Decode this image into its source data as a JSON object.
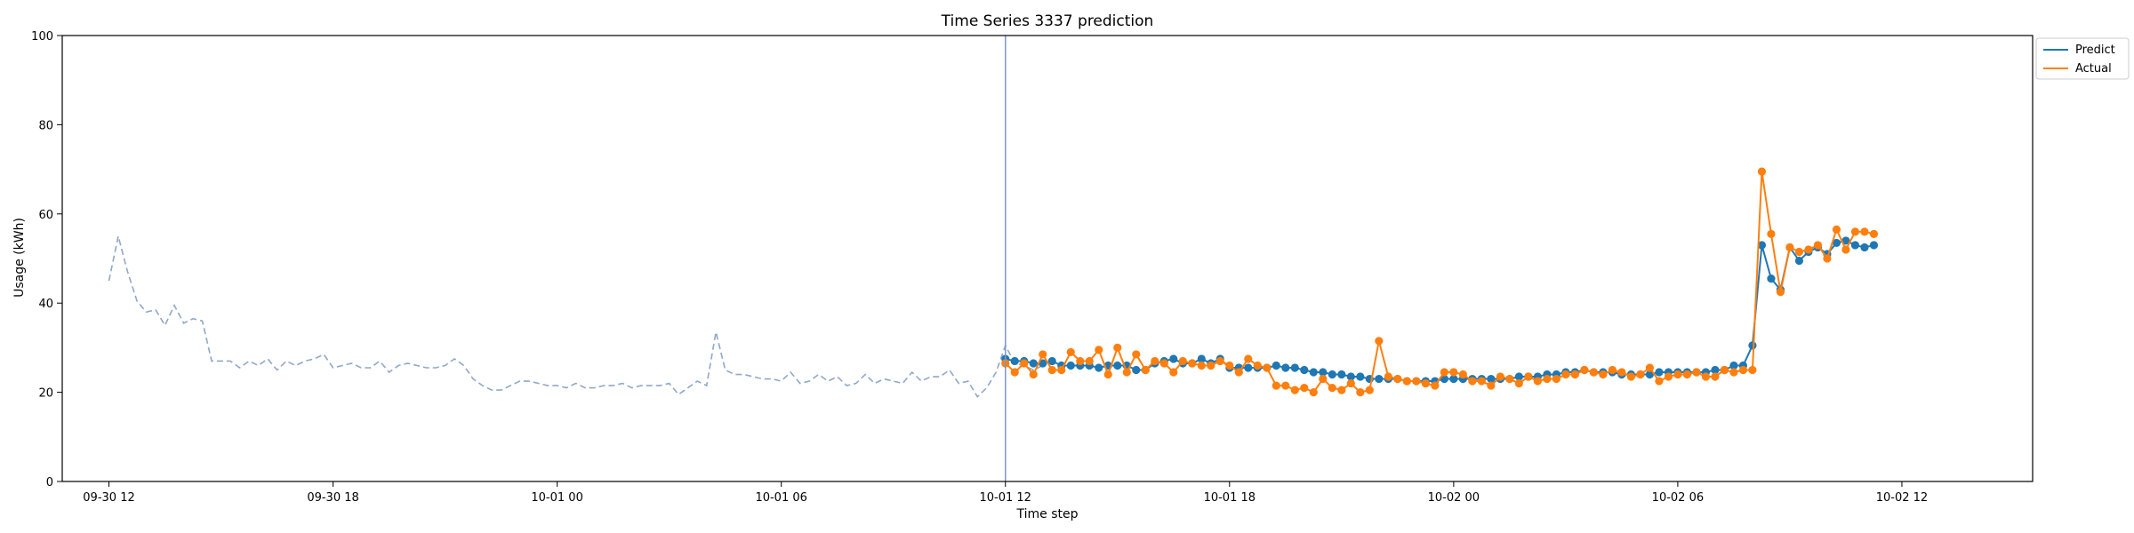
{
  "chart_data": {
    "type": "line",
    "title": "Time Series 3337 prediction",
    "xlabel": "Time step",
    "ylabel": "Usage (kWh)",
    "ylim": [
      0,
      100
    ],
    "yticks": [
      0,
      20,
      40,
      60,
      80,
      100
    ],
    "xlim_hours": [
      -1.25,
      51.5
    ],
    "x_origin": "09-30 12",
    "xticks": [
      {
        "hours": 0,
        "label": "09-30 12"
      },
      {
        "hours": 6,
        "label": "09-30 18"
      },
      {
        "hours": 12,
        "label": "10-01 00"
      },
      {
        "hours": 18,
        "label": "10-01 06"
      },
      {
        "hours": 24,
        "label": "10-01 12"
      },
      {
        "hours": 30,
        "label": "10-01 18"
      },
      {
        "hours": 36,
        "label": "10-02 00"
      },
      {
        "hours": 42,
        "label": "10-02 06"
      },
      {
        "hours": 48,
        "label": "10-02 12"
      }
    ],
    "step_hours": 0.25,
    "forecast_start_hours": 24,
    "grid": false,
    "legend": {
      "position": "top-right",
      "entries": [
        "Predict",
        "Actual"
      ]
    },
    "series": [
      {
        "name": "History",
        "color": "#8fa8c8",
        "style": "dashed",
        "start_hours": 0,
        "values": [
          45,
          55,
          47,
          40.5,
          38,
          38.5,
          35,
          39.5,
          35.5,
          36.5,
          36,
          27,
          27,
          27,
          25.5,
          27,
          26,
          27.5,
          25,
          27,
          26,
          27,
          27.5,
          28.5,
          25.5,
          26,
          26.5,
          25.5,
          25.5,
          27,
          24.5,
          26,
          26.5,
          26,
          25.5,
          25.5,
          26,
          27.5,
          26,
          23,
          21.5,
          20.5,
          20.5,
          21.5,
          22.5,
          22.5,
          22,
          21.5,
          21.5,
          21,
          22,
          21,
          21,
          21.5,
          21.5,
          22,
          21,
          21.5,
          21.5,
          21.5,
          22,
          19.5,
          21,
          22.5,
          21.5,
          33.5,
          25,
          24,
          24,
          23.5,
          23,
          23,
          22.5,
          24.5,
          22,
          22.5,
          24,
          22.5,
          23.5,
          21.5,
          22,
          24,
          22,
          23,
          22.5,
          22,
          24.5,
          22.5,
          23.5,
          23.5,
          25,
          22,
          22.5,
          19,
          21,
          24.5,
          30.5,
          26.5,
          26,
          25,
          26
        ]
      },
      {
        "name": "Predict",
        "color": "#1f77b4",
        "style": "solid-markers",
        "start_hours": 24,
        "values": [
          27.5,
          27,
          27,
          26.5,
          26.5,
          27,
          26,
          26,
          26,
          26,
          25.5,
          26,
          26,
          26,
          25,
          25,
          26.5,
          27,
          27.5,
          26.5,
          26.5,
          27.5,
          26.5,
          27.5,
          25.5,
          25.5,
          25.5,
          25.5,
          25.5,
          26,
          25.5,
          25.5,
          25,
          24.5,
          24.5,
          24,
          24,
          23.5,
          23.5,
          23,
          23,
          23,
          23,
          22.5,
          22.5,
          22.5,
          22.5,
          23,
          23,
          23,
          23,
          23,
          23,
          23,
          23,
          23.5,
          23.5,
          23.5,
          24,
          24,
          24.5,
          24.5,
          25,
          24.5,
          24.5,
          24.5,
          24,
          24,
          24,
          24,
          24.5,
          24.5,
          24.5,
          24.5,
          24.5,
          24.5,
          25,
          25,
          26,
          26,
          30.5,
          53,
          45.5,
          43,
          52.5,
          49.5,
          51.5,
          52.5,
          51,
          53.5,
          54,
          53,
          52.5,
          53
        ]
      },
      {
        "name": "Actual",
        "color": "#ff7f0e",
        "style": "solid-markers",
        "start_hours": 24,
        "values": [
          26.5,
          24.5,
          26.5,
          24,
          28.5,
          25,
          25,
          29,
          27,
          27,
          29.5,
          24,
          30,
          24.5,
          28.5,
          25,
          27,
          26.5,
          24.5,
          27,
          26.5,
          26,
          26,
          27,
          26,
          24.5,
          27.5,
          26,
          25.5,
          21.5,
          21.5,
          20.5,
          21,
          20,
          23,
          21,
          20.5,
          22,
          20,
          20.5,
          31.5,
          23.5,
          23,
          22.5,
          22.5,
          22,
          21.5,
          24.5,
          24.5,
          24,
          22.5,
          22.5,
          21.5,
          23.5,
          23,
          22,
          23.5,
          22.5,
          23,
          23,
          24,
          24,
          25,
          24.5,
          24,
          25,
          24.5,
          23.5,
          24,
          25.5,
          22.5,
          23.5,
          24,
          24,
          24.5,
          23.5,
          23.5,
          25,
          24.5,
          25,
          25,
          69.5,
          55.5,
          42.5,
          52.5,
          51.5,
          52,
          53,
          50,
          56.5,
          52,
          56,
          56,
          55.5
        ]
      }
    ]
  }
}
